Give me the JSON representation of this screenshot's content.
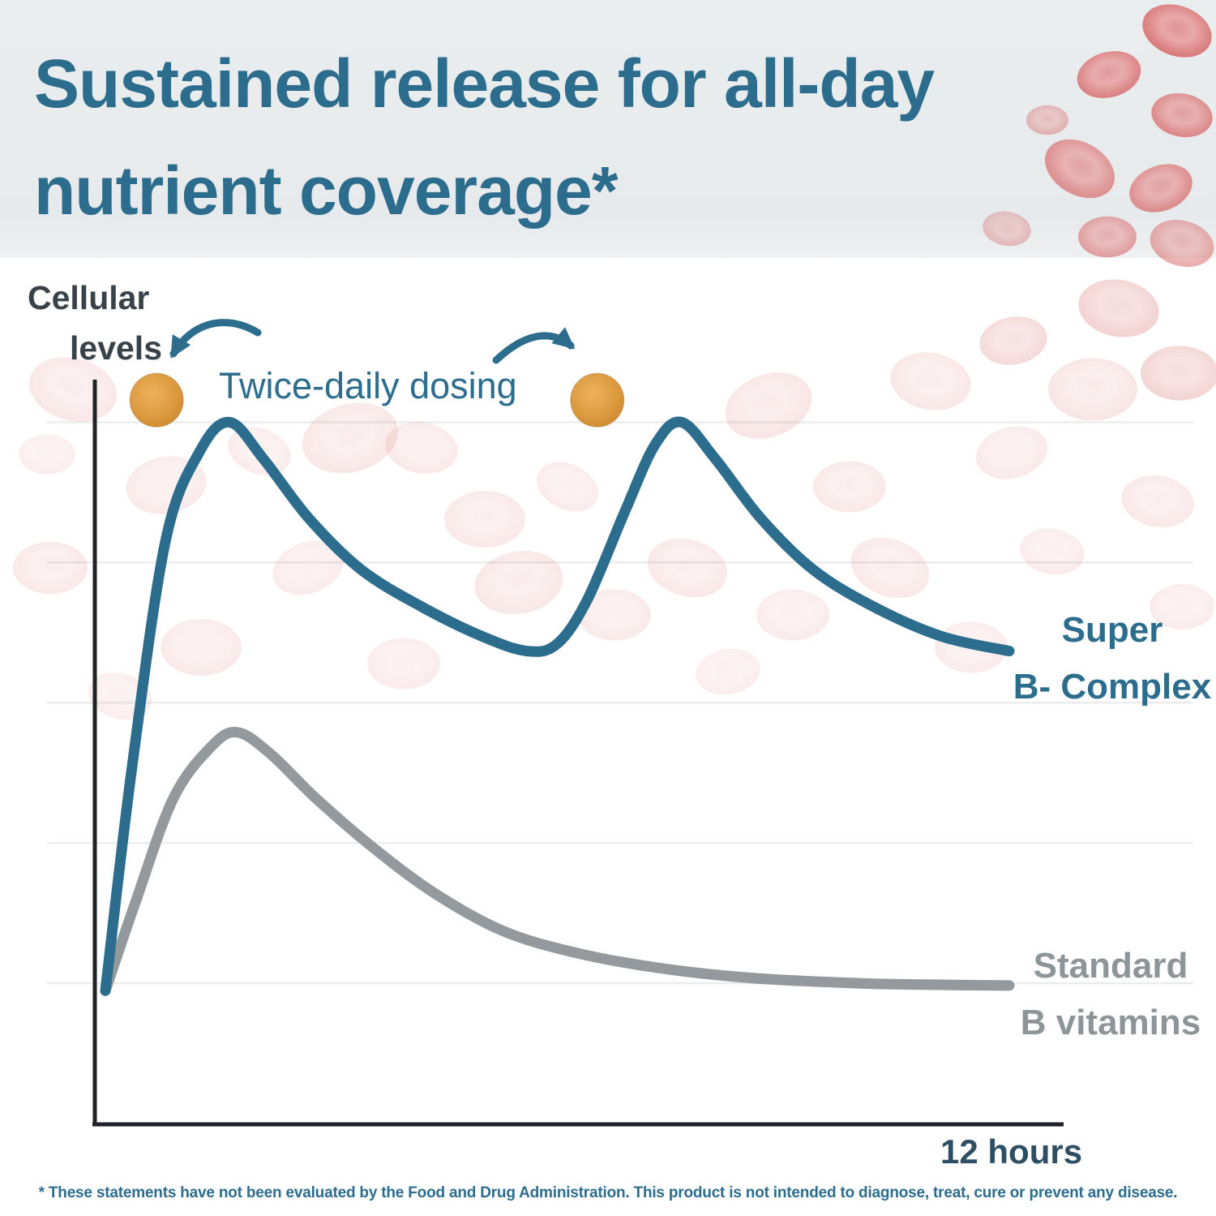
{
  "header": {
    "title_line1": "Sustained release for all-day",
    "title_line2": "nutrient coverage*"
  },
  "labels": {
    "ylabel_line1": "Cellular",
    "ylabel_line2": "levels",
    "dosing": "Twice-daily dosing",
    "series_super_line1": "Super",
    "series_super_line2": "B- Complex",
    "series_standard_line1": "Standard",
    "series_standard_line2": "B vitamins",
    "x_end": "12 hours"
  },
  "footnote": "* These statements have not been evaluated by the Food and Drug Administration. This product is not intended to diagnose, treat, cure or prevent any disease.",
  "colors": {
    "accent_teal": "#2c6d8e",
    "standard_gray": "#94999d",
    "pill_orange": "#dd9b40",
    "axis": "#1f2326",
    "blood_cell_red": "#d96b6b"
  },
  "chart_data": {
    "type": "line",
    "title": "Sustained release for all-day nutrient coverage*",
    "ylabel": "Cellular levels",
    "xlabel": "12 hours",
    "x_unit": "hours",
    "x_range_hours": [
      0,
      12
    ],
    "ylim": [
      0,
      100
    ],
    "grid": "faint-horizontal",
    "gridline_values": [
      19,
      38,
      57,
      76,
      95
    ],
    "legend_position": "right-inline",
    "annotations": {
      "dosing_label": "Twice-daily dosing",
      "dose_times_hours": [
        0.68,
        6.53
      ],
      "dose_level": 98
    },
    "series": [
      {
        "name": "Super B- Complex",
        "color": "#2c6d8e",
        "points": [
          [
            0,
            18
          ],
          [
            0.35,
            48
          ],
          [
            0.8,
            79
          ],
          [
            1.25,
            91
          ],
          [
            1.65,
            95
          ],
          [
            2.1,
            90
          ],
          [
            2.7,
            82
          ],
          [
            3.4,
            75
          ],
          [
            4.2,
            70
          ],
          [
            5.0,
            66
          ],
          [
            5.6,
            64
          ],
          [
            6.0,
            65
          ],
          [
            6.4,
            71
          ],
          [
            6.9,
            83
          ],
          [
            7.3,
            92
          ],
          [
            7.65,
            95
          ],
          [
            8.1,
            90
          ],
          [
            8.7,
            82
          ],
          [
            9.4,
            75
          ],
          [
            10.2,
            70
          ],
          [
            11.1,
            66
          ],
          [
            12,
            64
          ]
        ]
      },
      {
        "name": "Standard B vitamins",
        "color": "#94999d",
        "points": [
          [
            0,
            18
          ],
          [
            0.4,
            30
          ],
          [
            0.9,
            44
          ],
          [
            1.4,
            51
          ],
          [
            1.75,
            53
          ],
          [
            2.2,
            50
          ],
          [
            2.8,
            44
          ],
          [
            3.6,
            37
          ],
          [
            4.4,
            31
          ],
          [
            5.3,
            26
          ],
          [
            6.3,
            23
          ],
          [
            7.4,
            21
          ],
          [
            8.6,
            19.7
          ],
          [
            10,
            19
          ],
          [
            11,
            18.8
          ],
          [
            12,
            18.7
          ]
        ]
      }
    ]
  }
}
